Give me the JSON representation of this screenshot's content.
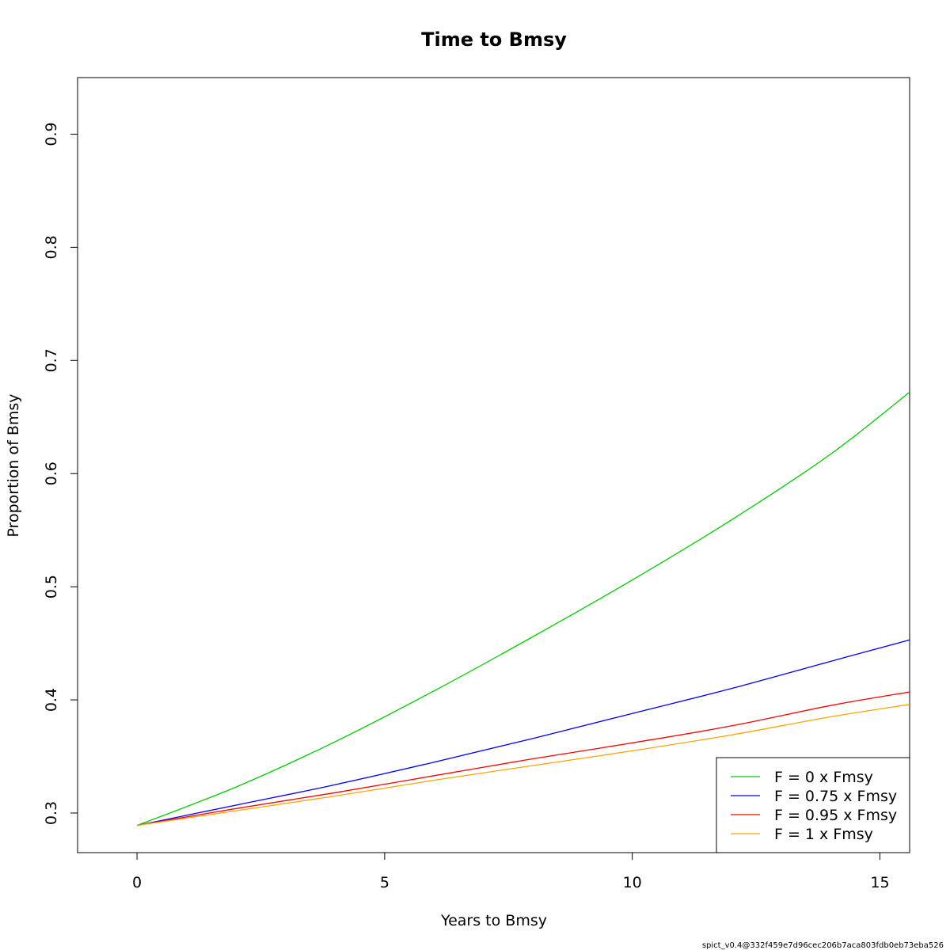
{
  "chart_data": {
    "type": "line",
    "title": "Time to Bmsy",
    "xlabel": "Years to Bmsy",
    "ylabel": "Proportion of Bmsy",
    "xlim": [
      -1.2,
      15.6
    ],
    "ylim": [
      0.265,
      0.95
    ],
    "xticks": [
      0,
      5,
      10,
      15
    ],
    "yticks": [
      0.3,
      0.4,
      0.5,
      0.6,
      0.7,
      0.8,
      0.9
    ],
    "grid": false,
    "legend_position": "bottom-right",
    "x": [
      0,
      2,
      4,
      6,
      8,
      10,
      12,
      14,
      15.6
    ],
    "series": [
      {
        "name": "F = 0 x Fmsy",
        "color": "#00CD00",
        "values": [
          0.289,
          0.323,
          0.363,
          0.408,
          0.456,
          0.506,
          0.559,
          0.617,
          0.672
        ]
      },
      {
        "name": "F = 0.75 x Fmsy",
        "color": "#0000FF",
        "values": [
          0.289,
          0.307,
          0.325,
          0.345,
          0.366,
          0.388,
          0.41,
          0.434,
          0.453
        ]
      },
      {
        "name": "F = 0.95 x Fmsy",
        "color": "#FF0000",
        "values": [
          0.289,
          0.304,
          0.318,
          0.333,
          0.348,
          0.362,
          0.377,
          0.395,
          0.407
        ]
      },
      {
        "name": "F = 1 x Fmsy",
        "color": "#FFA500",
        "values": [
          0.289,
          0.302,
          0.315,
          0.329,
          0.342,
          0.355,
          0.369,
          0.385,
          0.396
        ]
      }
    ]
  },
  "footer": "spict_v0.4@332f459e7d96cec206b7aca803fdb0eb73eba526"
}
